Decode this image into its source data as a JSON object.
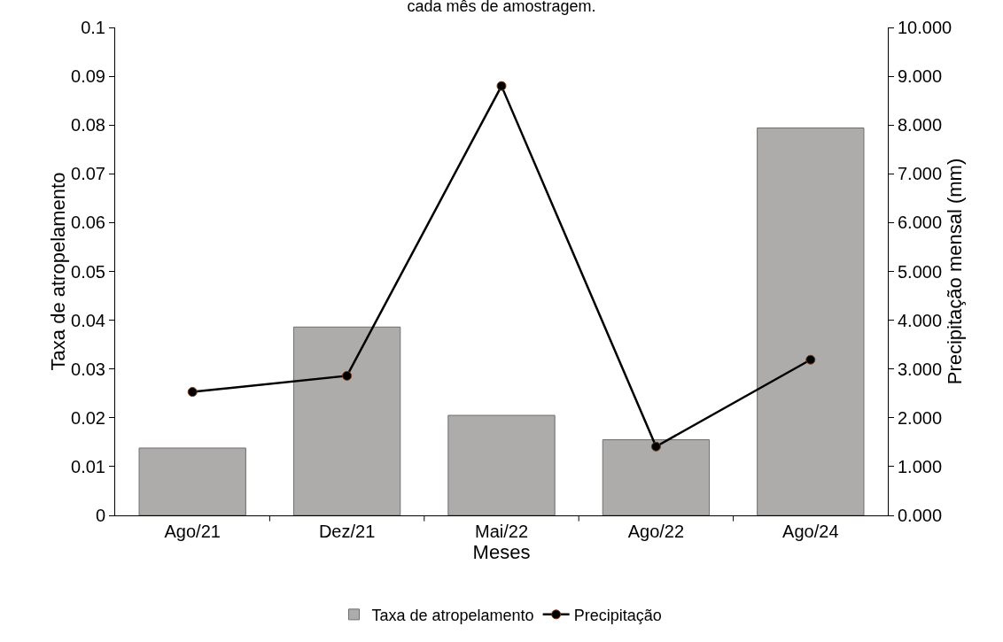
{
  "chart_data": {
    "type": "bar",
    "title": "cada mês de amostragem.",
    "xlabel": "Meses",
    "ylabel": "Taxa de atropelamento",
    "y2label": "Precipitação mensal (mm)",
    "categories": [
      "Ago/21",
      "Dez/21",
      "Mai/22",
      "Ago/22",
      "Ago/24"
    ],
    "series": [
      {
        "name": "Taxa de atropelamento",
        "color": "#aeabab",
        "values": [
          0.0138,
          0.0386,
          0.0205,
          0.0155,
          0.0794
        ]
      },
      {
        "name": "Precipitação",
        "type": "line",
        "axis": "y2",
        "color": "#000000",
        "values": [
          2.53,
          2.86,
          8.8,
          1.41,
          3.19
        ]
      }
    ],
    "ylim": [
      0,
      0.1
    ],
    "yticks": [
      0,
      0.01,
      0.02,
      0.03,
      0.04,
      0.05,
      0.06,
      0.07,
      0.08,
      0.09,
      0.1
    ],
    "y2lim": [
      0,
      10
    ],
    "y2ticks": [
      {
        "value": 0,
        "label": "0.000"
      },
      {
        "value": 1,
        "label": "1.000"
      },
      {
        "value": 2,
        "label": "2.000"
      },
      {
        "value": 3,
        "label": "3.000"
      },
      {
        "value": 4,
        "label": "4.000"
      },
      {
        "value": 5,
        "label": "5.000"
      },
      {
        "value": 6,
        "label": "6.000"
      },
      {
        "value": 7,
        "label": "7.000"
      },
      {
        "value": 8,
        "label": "8.000"
      },
      {
        "value": 9,
        "label": "9.000"
      },
      {
        "value": 10,
        "label": "10.000"
      }
    ],
    "grid": false,
    "legend": "bottom",
    "marker": "circle",
    "line_style": "solid"
  }
}
